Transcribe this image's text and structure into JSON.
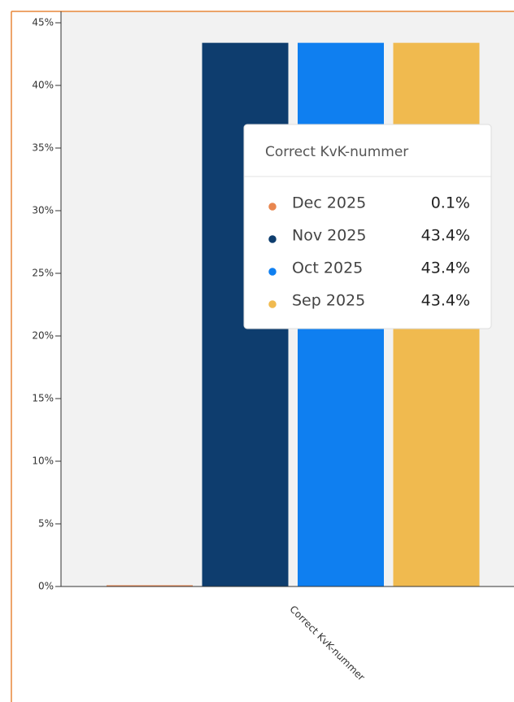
{
  "chart_data": {
    "type": "bar",
    "categories": [
      "Correct KvK-nummer"
    ],
    "series": [
      {
        "name": "Dec 2025",
        "color": "#e8864f",
        "values": [
          0.1
        ],
        "value_labels": [
          "0.1%"
        ]
      },
      {
        "name": "Nov 2025",
        "color": "#0e3d6e",
        "values": [
          43.4
        ],
        "value_labels": [
          "43.4%"
        ]
      },
      {
        "name": "Oct 2025",
        "color": "#0f7ff0",
        "values": [
          43.4
        ],
        "value_labels": [
          "43.4%"
        ]
      },
      {
        "name": "Sep 2025",
        "color": "#f0ba4f",
        "values": [
          43.4
        ],
        "value_labels": [
          "43.4%"
        ]
      }
    ],
    "ylim": [
      0,
      45
    ],
    "yticks": [
      {
        "value": 0,
        "label": "0%"
      },
      {
        "value": 5,
        "label": "5%"
      },
      {
        "value": 10,
        "label": "10%"
      },
      {
        "value": 15,
        "label": "15%"
      },
      {
        "value": 20,
        "label": "20%"
      },
      {
        "value": 25,
        "label": "25%"
      },
      {
        "value": 30,
        "label": "30%"
      },
      {
        "value": 35,
        "label": "35%"
      },
      {
        "value": 40,
        "label": "40%"
      },
      {
        "value": 45,
        "label": "45%"
      }
    ]
  }
}
